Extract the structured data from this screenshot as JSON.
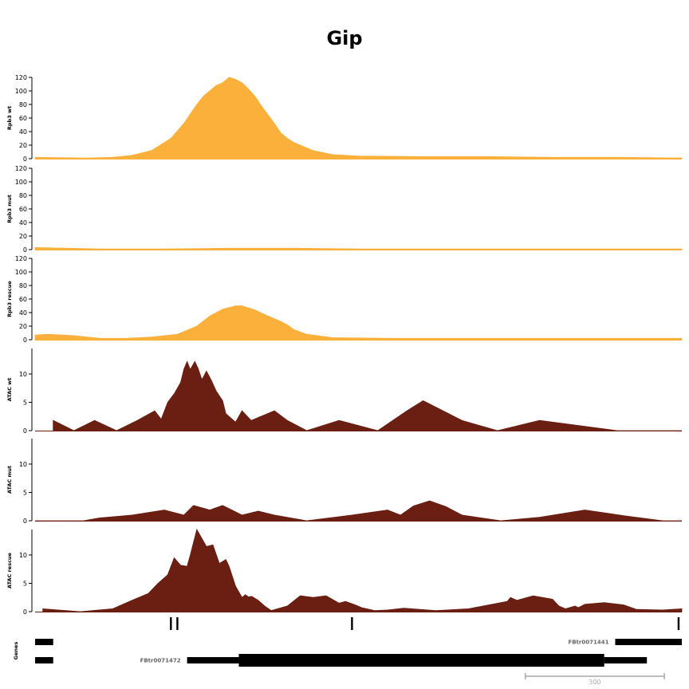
{
  "title": "Gip",
  "colors": {
    "rpb3": "#fbb03b",
    "atac": "#6b1f12",
    "genes": "#000000",
    "gene_label": "#666666",
    "scale": "#aaaaaa"
  },
  "chart_data": [
    {
      "type": "area",
      "track": "Rpb3 wt",
      "ylabel": "Rpb3 wt",
      "ylim": [
        0,
        120
      ],
      "yticks": [
        "0",
        "20",
        "40",
        "60",
        "80",
        "100",
        "120"
      ],
      "xlim": [
        0,
        1
      ],
      "x": [
        0,
        0.08,
        0.12,
        0.15,
        0.18,
        0.21,
        0.23,
        0.25,
        0.26,
        0.28,
        0.29,
        0.3,
        0.31,
        0.32,
        0.33,
        0.34,
        0.35,
        0.36,
        0.37,
        0.38,
        0.39,
        0.4,
        0.43,
        0.46,
        0.5,
        0.6,
        0.7,
        0.8,
        0.9,
        1.0
      ],
      "values": [
        2,
        1,
        2,
        5,
        12,
        30,
        52,
        80,
        92,
        108,
        112,
        120,
        117,
        112,
        103,
        92,
        78,
        65,
        52,
        38,
        30,
        24,
        12,
        6,
        4,
        3,
        3,
        2,
        2,
        1
      ]
    },
    {
      "type": "area",
      "track": "Rpb3 mut",
      "ylabel": "Rpb3 mut",
      "ylim": [
        0,
        120
      ],
      "yticks": [
        "0",
        "20",
        "40",
        "60",
        "80",
        "100",
        "120"
      ],
      "xlim": [
        0,
        1
      ],
      "x": [
        0,
        0.05,
        0.1,
        0.2,
        0.3,
        0.4,
        0.5,
        0.6,
        0.7,
        0.8,
        0.9,
        1.0
      ],
      "values": [
        3,
        2,
        1,
        1,
        2,
        2,
        1,
        1,
        1,
        1,
        1,
        1
      ]
    },
    {
      "type": "area",
      "track": "Rpb3 rescue",
      "ylabel": "Rpb3 rescue",
      "ylim": [
        0,
        120
      ],
      "yticks": [
        "0",
        "20",
        "40",
        "60",
        "80",
        "100",
        "120"
      ],
      "xlim": [
        0,
        1
      ],
      "x": [
        0,
        0.02,
        0.06,
        0.1,
        0.14,
        0.18,
        0.22,
        0.25,
        0.27,
        0.29,
        0.31,
        0.32,
        0.34,
        0.36,
        0.38,
        0.39,
        0.4,
        0.42,
        0.46,
        0.55,
        0.7,
        0.85,
        1.0
      ],
      "values": [
        7,
        8,
        6,
        2,
        2,
        4,
        8,
        20,
        35,
        45,
        50,
        50,
        44,
        35,
        27,
        22,
        15,
        8,
        3,
        2,
        2,
        2,
        2
      ]
    },
    {
      "type": "area",
      "track": "ATAC wt",
      "ylabel": "ATAC wt",
      "ylim": [
        0,
        14.5
      ],
      "yticks": [
        "0",
        "5",
        "10"
      ],
      "xlim": [
        0,
        1
      ],
      "x": [
        0.028,
        0.06,
        0.092,
        0.126,
        0.158,
        0.185,
        0.195,
        0.2,
        0.205,
        0.215,
        0.225,
        0.23,
        0.235,
        0.24,
        0.247,
        0.252,
        0.258,
        0.265,
        0.272,
        0.28,
        0.29,
        0.295,
        0.31,
        0.32,
        0.334,
        0.37,
        0.39,
        0.42,
        0.47,
        0.53,
        0.575,
        0.6,
        0.66,
        0.715,
        0.78,
        0.9,
        1.0
      ],
      "values": [
        1.8,
        0,
        1.8,
        0,
        1.8,
        3.5,
        2.0,
        3.5,
        5.0,
        6.5,
        8.5,
        10.8,
        12.2,
        10.8,
        12.2,
        11.0,
        9.0,
        10.5,
        9.0,
        7.0,
        5.3,
        3.0,
        1.5,
        3.5,
        1.8,
        3.5,
        1.8,
        0,
        1.8,
        0,
        3.5,
        5.3,
        1.8,
        0,
        1.8,
        0,
        0
      ]
    },
    {
      "type": "area",
      "track": "ATAC mut",
      "ylabel": "ATAC mut",
      "ylim": [
        0,
        14.5
      ],
      "yticks": [
        "0",
        "5",
        "10"
      ],
      "xlim": [
        0,
        1
      ],
      "x": [
        0,
        0.075,
        0.1,
        0.15,
        0.2,
        0.23,
        0.245,
        0.27,
        0.29,
        0.32,
        0.345,
        0.37,
        0.42,
        0.49,
        0.545,
        0.565,
        0.585,
        0.61,
        0.635,
        0.66,
        0.72,
        0.78,
        0.85,
        0.91,
        0.97,
        1.0
      ],
      "values": [
        0,
        0,
        0.5,
        1.0,
        1.9,
        1.0,
        2.7,
        1.9,
        2.7,
        1.0,
        1.7,
        1.0,
        0,
        1.0,
        1.9,
        1.0,
        2.6,
        3.5,
        2.5,
        1.0,
        0,
        0.6,
        1.9,
        0.9,
        0,
        0
      ]
    },
    {
      "type": "area",
      "track": "ATAC rescue",
      "ylabel": "ATAC rescue",
      "ylim": [
        0,
        14.5
      ],
      "yticks": [
        "0",
        "5",
        "10"
      ],
      "xlim": [
        0,
        1
      ],
      "x": [
        0.012,
        0.07,
        0.12,
        0.15,
        0.175,
        0.19,
        0.205,
        0.215,
        0.225,
        0.235,
        0.24,
        0.25,
        0.255,
        0.265,
        0.275,
        0.285,
        0.295,
        0.3,
        0.31,
        0.32,
        0.325,
        0.33,
        0.335,
        0.345,
        0.355,
        0.365,
        0.39,
        0.41,
        0.43,
        0.45,
        0.47,
        0.48,
        0.495,
        0.505,
        0.525,
        0.545,
        0.57,
        0.62,
        0.67,
        0.73,
        0.735,
        0.745,
        0.77,
        0.8,
        0.81,
        0.82,
        0.835,
        0.84,
        0.85,
        0.88,
        0.91,
        0.93,
        0.97,
        1.0
      ],
      "values": [
        0.5,
        0,
        0.5,
        2.0,
        3.2,
        5.0,
        6.5,
        9.5,
        8.2,
        8.0,
        10.0,
        14.5,
        13.5,
        11.5,
        11.8,
        8.5,
        9.2,
        8.0,
        4.5,
        2.5,
        3.0,
        2.6,
        2.7,
        2.0,
        1.0,
        0.2,
        1.0,
        2.8,
        2.5,
        2.8,
        1.5,
        1.8,
        1.2,
        0.7,
        0.2,
        0.3,
        0.6,
        0.2,
        0.5,
        1.8,
        2.5,
        2.0,
        2.8,
        2.2,
        1.0,
        0.5,
        1.0,
        0.7,
        1.3,
        1.6,
        1.2,
        0.4,
        0.3,
        0.5
      ]
    }
  ],
  "tick_marks_x": [
    0.21,
    0.22,
    0.49,
    0.995
  ],
  "genes": {
    "label": "Genes",
    "rows": [
      {
        "name": "FBtr0071441",
        "segments": [
          {
            "start": 0.0,
            "end": 0.028,
            "kind": "thin"
          },
          {
            "start": 0.897,
            "end": 1.0,
            "kind": "thin"
          }
        ]
      },
      {
        "name": "FBtr0071472",
        "segments": [
          {
            "start": 0.0,
            "end": 0.028,
            "kind": "thin"
          },
          {
            "start": 0.235,
            "end": 0.315,
            "kind": "thin"
          },
          {
            "start": 0.315,
            "end": 0.88,
            "kind": "thick"
          },
          {
            "start": 0.88,
            "end": 0.946,
            "kind": "thin"
          }
        ]
      }
    ]
  },
  "scale_bar": {
    "label": "300",
    "start": 0.758,
    "end": 0.973
  }
}
